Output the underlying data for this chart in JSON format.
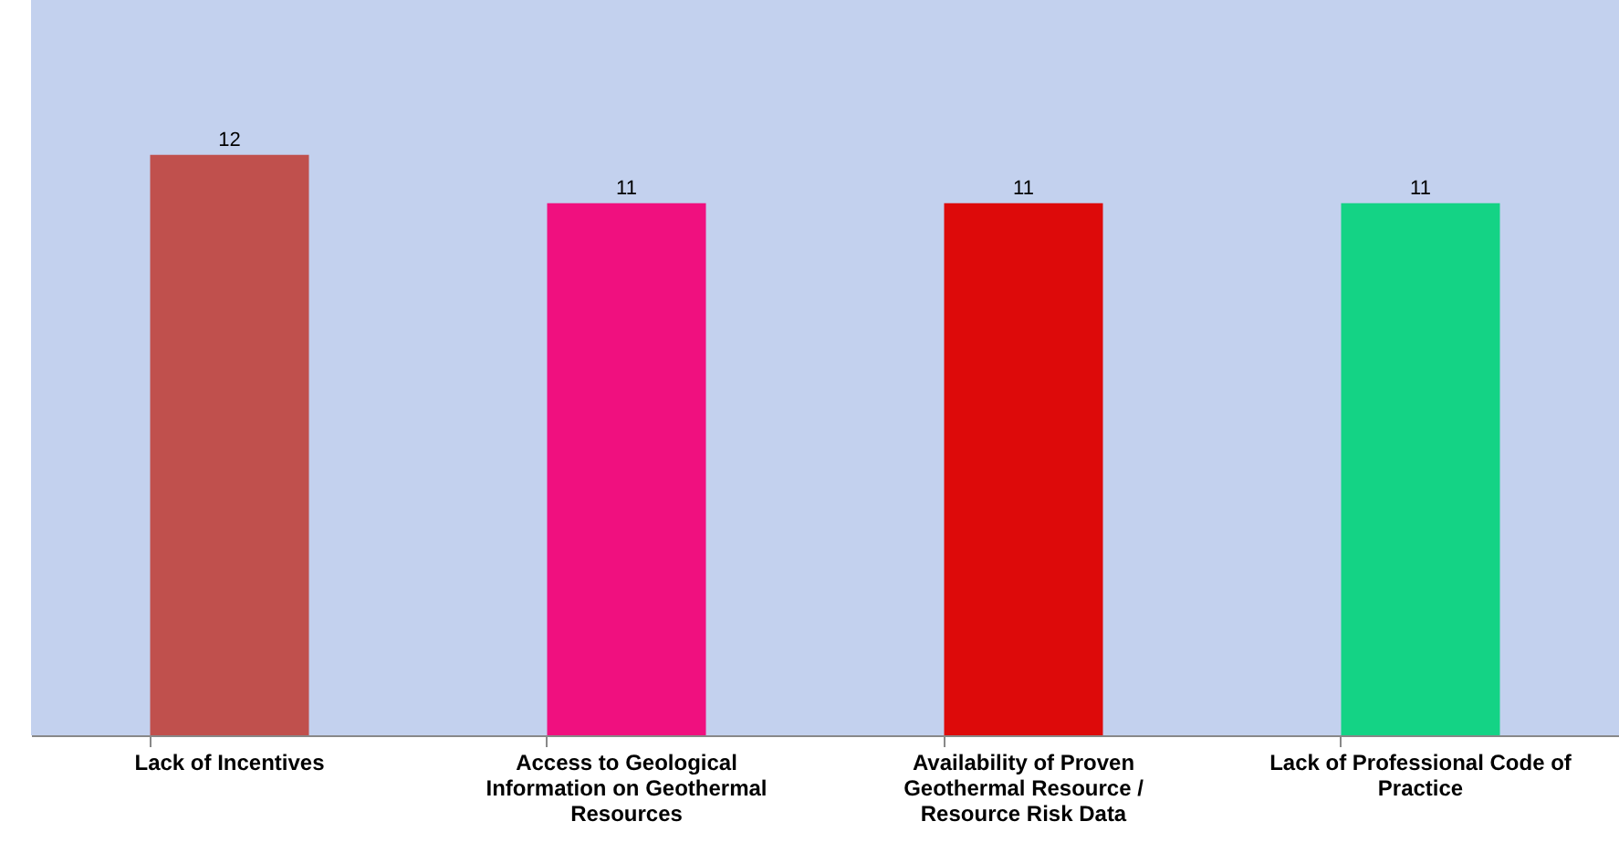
{
  "chart_data": {
    "type": "bar",
    "categories": [
      "Lack of Incentives",
      "Access to Geological Information on Geothermal Resources",
      "Availability of Proven Geothermal Resource / Resource Risk Data",
      "Lack of Professional Code of Practice"
    ],
    "values": [
      12,
      11,
      11,
      11
    ],
    "colors": [
      "#c0504d",
      "#f0107f",
      "#dd0a0a",
      "#14d385"
    ],
    "ylim": [
      0,
      15.2
    ],
    "data_labels": true,
    "grid": false
  }
}
